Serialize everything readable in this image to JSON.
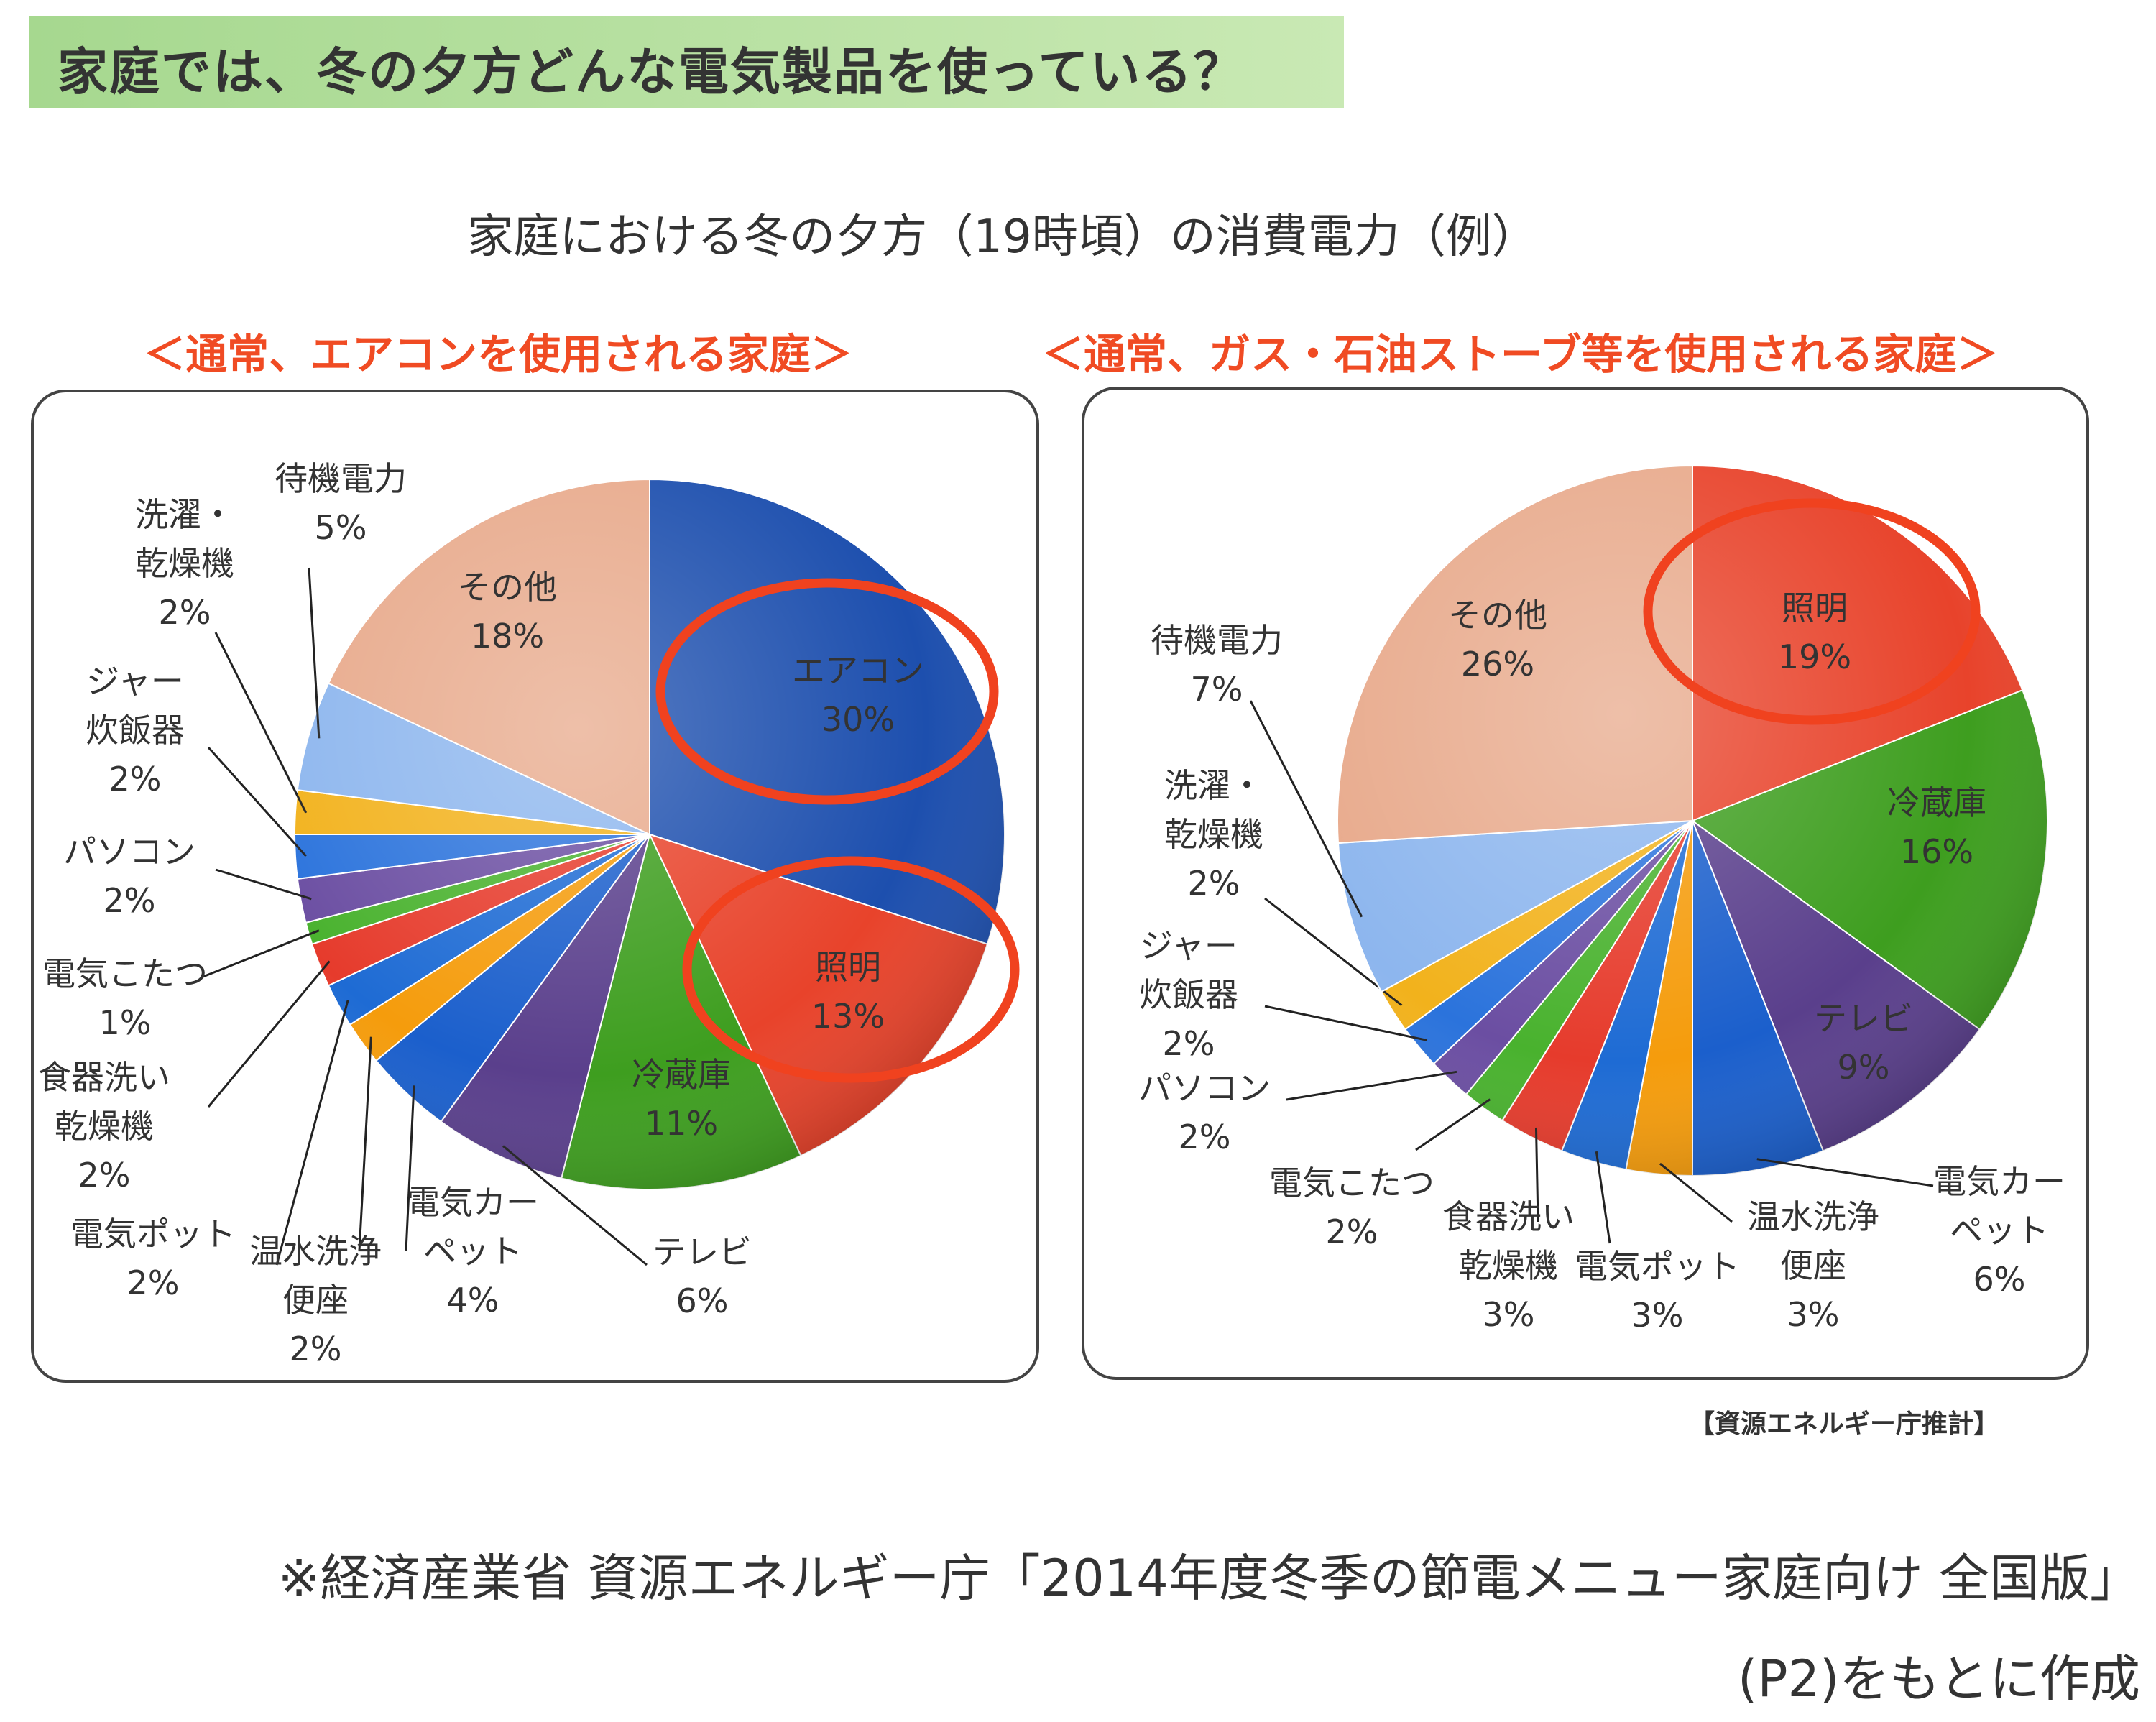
{
  "header": {
    "title": "家庭では、冬の夕方どんな電気製品を使っている？"
  },
  "subtitle": "家庭における冬の夕方（19時頃）の消費電力（例）",
  "source_note": "【資源エネルギー庁推計】",
  "footer": {
    "line1": "※経済産業省 資源エネルギー庁「2014年度冬季の節電メニュー家庭向け 全国版」",
    "line2": "(P2)をもとに作成"
  },
  "chart_data": [
    {
      "type": "pie",
      "title": "＜通常、エアコンを使用される家庭＞",
      "unit": "%",
      "start": "top, clockwise",
      "categories": [
        "エアコン",
        "照明",
        "冷蔵庫",
        "テレビ",
        "電気カーペット",
        "温水洗浄便座",
        "電気ポット",
        "食器洗い乾燥機",
        "電気こたつ",
        "パソコン",
        "ジャー炊飯器",
        "洗濯・乾燥機",
        "待機電力",
        "その他"
      ],
      "label_text": [
        "エアコン",
        "照明",
        "冷蔵庫",
        "テレビ",
        "電気カー\nペット",
        "温水洗浄\n便座",
        "電気ポット",
        "食器洗い\n乾燥機",
        "電気こたつ",
        "パソコン",
        "ジャー\n炊飯器",
        "洗濯・\n乾燥機",
        "待機電力",
        "その他"
      ],
      "values": [
        30,
        13,
        11,
        6,
        4,
        2,
        2,
        2,
        1,
        2,
        2,
        2,
        5,
        18
      ],
      "value_labels": [
        "30%",
        "13%",
        "11%",
        "6%",
        "4%",
        "2%",
        "2%",
        "2%",
        "1%",
        "2%",
        "2%",
        "2%",
        "5%",
        "18%"
      ],
      "colors": [
        "#1d4fae",
        "#e8432b",
        "#3e9e1f",
        "#5a3f8c",
        "#1b5fcc",
        "#f59c0c",
        "#1e6bd4",
        "#e63b2c",
        "#49b22e",
        "#6b4ea2",
        "#2b73dc",
        "#f2b21c",
        "#8db6ee",
        "#e8aa8c"
      ],
      "highlighted": [
        "エアコン",
        "照明"
      ]
    },
    {
      "type": "pie",
      "title": "＜通常、ガス・石油ストーブ等を使用される家庭＞",
      "unit": "%",
      "start": "top, clockwise",
      "categories": [
        "照明",
        "冷蔵庫",
        "テレビ",
        "電気カーペット",
        "温水洗浄便座",
        "電気ポット",
        "食器洗い乾燥機",
        "電気こたつ",
        "パソコン",
        "ジャー炊飯器",
        "洗濯・乾燥機",
        "待機電力",
        "その他"
      ],
      "label_text": [
        "照明",
        "冷蔵庫",
        "テレビ",
        "電気カー\nペット",
        "温水洗浄\n便座",
        "電気ポット",
        "食器洗い\n乾燥機",
        "電気こたつ",
        "パソコン",
        "ジャー\n炊飯器",
        "洗濯・\n乾燥機",
        "待機電力",
        "その他"
      ],
      "values": [
        19,
        16,
        9,
        6,
        3,
        3,
        3,
        2,
        2,
        2,
        2,
        7,
        26
      ],
      "value_labels": [
        "19%",
        "16%",
        "9%",
        "6%",
        "3%",
        "3%",
        "3%",
        "2%",
        "2%",
        "2%",
        "2%",
        "7%",
        "26%"
      ],
      "colors": [
        "#e8432b",
        "#3e9e1f",
        "#5a3f8c",
        "#1b5fcc",
        "#f59c0c",
        "#1e6bd4",
        "#e63b2c",
        "#49b22e",
        "#6b4ea2",
        "#2b73dc",
        "#f2b21c",
        "#8db6ee",
        "#e8aa8c"
      ],
      "highlighted": [
        "照明"
      ]
    }
  ]
}
